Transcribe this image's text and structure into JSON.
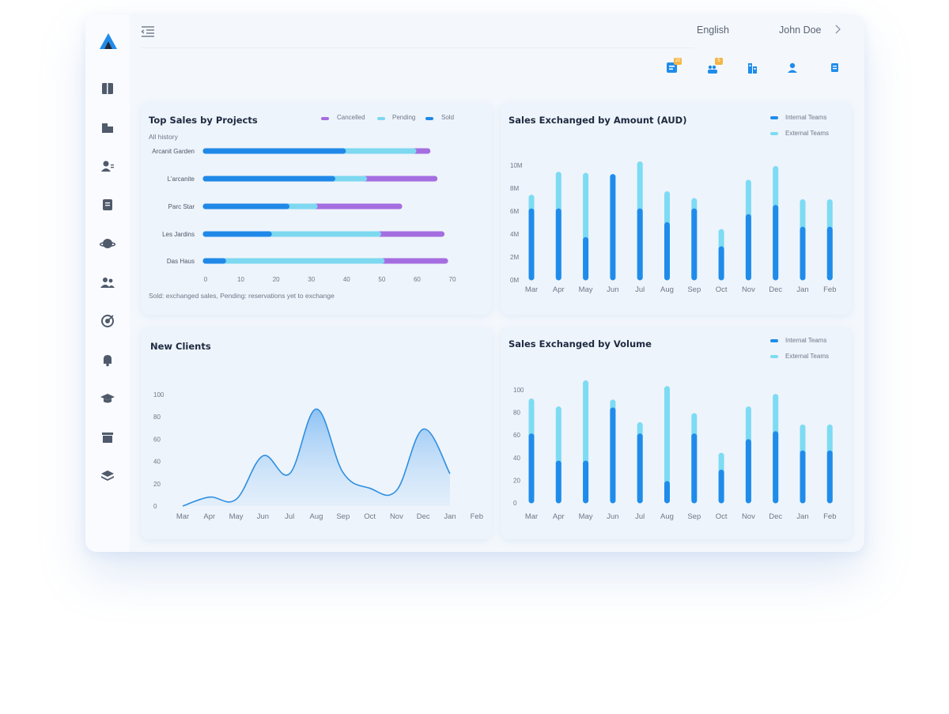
{
  "header": {
    "language": "English",
    "user_name": "John Doe",
    "quick_icons": [
      {
        "name": "tasks-icon",
        "badge": "20"
      },
      {
        "name": "team-icon",
        "badge": "5"
      },
      {
        "name": "buildings-icon",
        "badge": ""
      },
      {
        "name": "profile-icon",
        "badge": ""
      },
      {
        "name": "notes-icon",
        "badge": ""
      }
    ]
  },
  "sidebar": {
    "items": [
      {
        "icon": "book-icon"
      },
      {
        "icon": "building-icon"
      },
      {
        "icon": "contacts-icon"
      },
      {
        "icon": "scroll-icon"
      },
      {
        "icon": "planet-icon"
      },
      {
        "icon": "users-icon"
      },
      {
        "icon": "target-icon"
      },
      {
        "icon": "bell-icon"
      },
      {
        "icon": "graduation-icon"
      },
      {
        "icon": "archive-icon"
      },
      {
        "icon": "layers-icon"
      }
    ]
  },
  "colors": {
    "sold": "#2089e8",
    "pending": "#7dd8f0",
    "cancelled": "#a56ee0",
    "internal": "#1f8ceb",
    "external": "#7ddbf3",
    "line": "#2e8fe0"
  },
  "top_sales": {
    "title": "Top Sales by Projects",
    "subtitle": "All history",
    "legend": [
      "Cancelled",
      "Pending",
      "Sold"
    ],
    "footnote": "Sold: exchanged sales, Pending: reservations yet to exchange"
  },
  "amount_chart": {
    "title": "Sales Exchanged by Amount (AUD)",
    "legend": [
      "Internal Teams",
      "External Teams"
    ]
  },
  "clients_chart": {
    "title": "New Clients"
  },
  "volume_chart": {
    "title": "Sales Exchanged by Volume",
    "legend": [
      "Internal Teams",
      "External Teams"
    ]
  },
  "chart_data": [
    {
      "type": "bar",
      "orientation": "horizontal",
      "stacked": true,
      "categories": [
        "Arcanit Garden",
        "L'arcanite",
        "Parc Star",
        "Les Jardins",
        "Das Haus"
      ],
      "series": [
        {
          "name": "Sold",
          "values": [
            39,
            36,
            23,
            18,
            5
          ]
        },
        {
          "name": "Pending",
          "values": [
            20,
            9,
            8,
            31,
            45
          ]
        },
        {
          "name": "Cancelled",
          "values": [
            4,
            20,
            24,
            18,
            18
          ]
        }
      ],
      "xlim": [
        0,
        70
      ],
      "xticks": [
        0,
        10,
        20,
        30,
        40,
        50,
        60,
        70
      ]
    },
    {
      "type": "bar",
      "stacked": true,
      "categories": [
        "Mar",
        "Apr",
        "May",
        "Jun",
        "Jul",
        "Aug",
        "Sep",
        "Oct",
        "Nov",
        "Dec",
        "Jan",
        "Feb"
      ],
      "series": [
        {
          "name": "Internal Teams",
          "values": [
            6.2,
            6.2,
            3.7,
            9.2,
            6.2,
            5.0,
            6.2,
            2.9,
            5.7,
            6.5,
            4.6,
            4.6
          ]
        },
        {
          "name": "External Teams",
          "values": [
            1.2,
            3.2,
            5.6,
            0.0,
            4.1,
            2.7,
            0.9,
            1.5,
            3.0,
            3.4,
            2.4,
            2.4
          ]
        }
      ],
      "ylim": [
        0,
        10
      ],
      "yticks": [
        "0M",
        "2M",
        "4M",
        "6M",
        "8M",
        "10M"
      ]
    },
    {
      "type": "area",
      "x": [
        "Mar",
        "Apr",
        "May",
        "Jun",
        "Jul",
        "Aug",
        "Sep",
        "Oct",
        "Nov",
        "Dec",
        "Jan",
        "Feb"
      ],
      "series": [
        {
          "values": [
            0,
            8,
            6,
            45,
            29,
            87,
            30,
            16,
            14,
            69,
            29,
            null
          ]
        }
      ],
      "ylim": [
        0,
        100
      ],
      "yticks": [
        0,
        20,
        40,
        60,
        80,
        100
      ]
    },
    {
      "type": "bar",
      "stacked": true,
      "categories": [
        "Mar",
        "Apr",
        "May",
        "Jun",
        "Jul",
        "Aug",
        "Sep",
        "Oct",
        "Nov",
        "Dec",
        "Jan",
        "Feb"
      ],
      "series": [
        {
          "name": "Internal Teams",
          "values": [
            61,
            37,
            37,
            84,
            61,
            19,
            61,
            29,
            56,
            63,
            46,
            46
          ]
        },
        {
          "name": "External Teams",
          "values": [
            31,
            48,
            71,
            7,
            10,
            84,
            18,
            15,
            29,
            33,
            23,
            23
          ]
        }
      ],
      "ylim": [
        0,
        100
      ],
      "yticks": [
        0,
        20,
        40,
        60,
        80,
        100
      ]
    }
  ]
}
